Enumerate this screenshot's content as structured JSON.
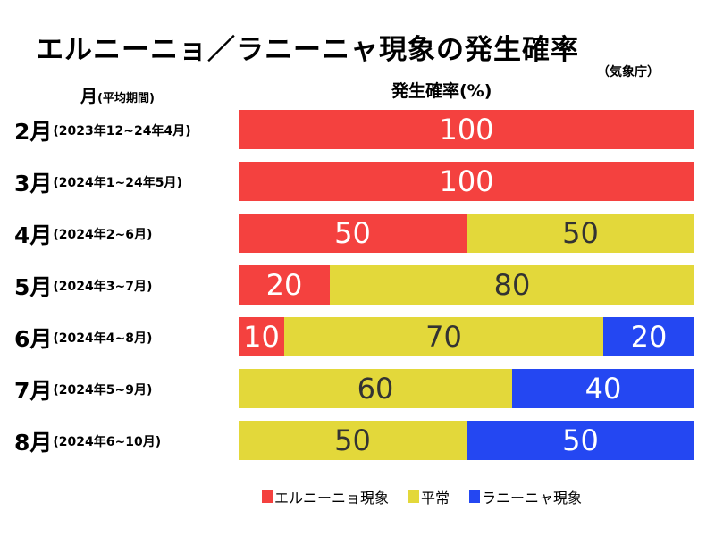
{
  "title": "エルニーニョ／ラニーニャ現象の発生確率",
  "source": "（気象庁）",
  "month_header": {
    "main": "月",
    "sub": "(平均期間)"
  },
  "value_header": "発生確率(%)",
  "colors": {
    "el_nino": "#f4413f",
    "normal": "#e3d83a",
    "la_nina": "#2447f2"
  },
  "rows": [
    {
      "month": "2月",
      "period": "(2023年12~24年4月)"
    },
    {
      "month": "3月",
      "period": "(2024年1~24年5月)"
    },
    {
      "month": "4月",
      "period": "(2024年2~6月)"
    },
    {
      "month": "5月",
      "period": "(2024年3~7月)"
    },
    {
      "month": "6月",
      "period": "(2024年4~8月)"
    },
    {
      "month": "7月",
      "period": "(2024年5~9月)"
    },
    {
      "month": "8月",
      "period": "(2024年6~10月)"
    }
  ],
  "legend": [
    {
      "label": "エルニーニョ現象",
      "color": "#f4413f"
    },
    {
      "label": "平常",
      "color": "#e3d83a"
    },
    {
      "label": "ラニーニャ現象",
      "color": "#2447f2"
    }
  ],
  "chart_data": {
    "type": "bar",
    "stacked": true,
    "orientation": "horizontal",
    "title": "エルニーニョ／ラニーニャ現象の発生確率",
    "xlabel": "発生確率(%)",
    "ylabel": "月(平均期間)",
    "categories": [
      "2月",
      "3月",
      "4月",
      "5月",
      "6月",
      "7月",
      "8月"
    ],
    "xlim": [
      0,
      100
    ],
    "grid": false,
    "legend_position": "bottom",
    "series": [
      {
        "name": "エルニーニョ現象",
        "color": "#f4413f",
        "values": [
          100,
          100,
          50,
          20,
          10,
          0,
          0
        ]
      },
      {
        "name": "平常",
        "color": "#e3d83a",
        "values": [
          0,
          0,
          50,
          80,
          70,
          60,
          50
        ]
      },
      {
        "name": "ラニーニャ現象",
        "color": "#2447f2",
        "values": [
          0,
          0,
          0,
          0,
          20,
          40,
          50
        ]
      }
    ]
  }
}
